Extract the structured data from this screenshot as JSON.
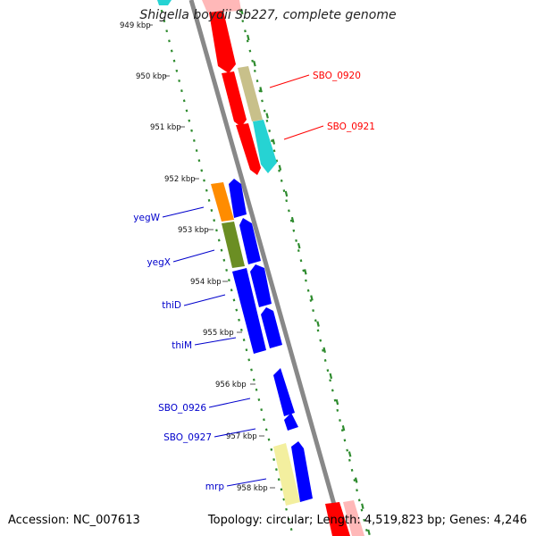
{
  "title": "Shigella boydii Sb227, complete genome",
  "footer": {
    "accession": "Accession: NC_007613",
    "summary": "Topology: circular; Length: 4,519,823 bp; Genes: 4,246"
  },
  "ticks": [
    "949 kbp",
    "950 kbp",
    "951 kbp",
    "952 kbp",
    "953 kbp",
    "954 kbp",
    "955 kbp",
    "956 kbp",
    "957 kbp",
    "958 kbp"
  ],
  "gene_labels": [
    {
      "name": "SBO_0920",
      "color": "#ff0000"
    },
    {
      "name": "SBO_0921",
      "color": "#ff0000"
    },
    {
      "name": "yegW",
      "color": "#0000cc"
    },
    {
      "name": "yegX",
      "color": "#0000cc"
    },
    {
      "name": "thiD",
      "color": "#0000cc"
    },
    {
      "name": "thiM",
      "color": "#0000cc"
    },
    {
      "name": "SBO_0926",
      "color": "#0000cc"
    },
    {
      "name": "SBO_0927",
      "color": "#0000cc"
    },
    {
      "name": "mrp",
      "color": "#0000cc"
    }
  ],
  "colors": {
    "forward_cds": "#ff0000",
    "reverse_cds": "#0000ff",
    "backbone": "#888888",
    "gc_track": "#2e8b2e",
    "khaki": "#c8c08a",
    "cyan": "#26d3d3",
    "orange": "#ff8c00",
    "olive": "#6b8e23",
    "pale_yellow": "#f3ef9f"
  }
}
